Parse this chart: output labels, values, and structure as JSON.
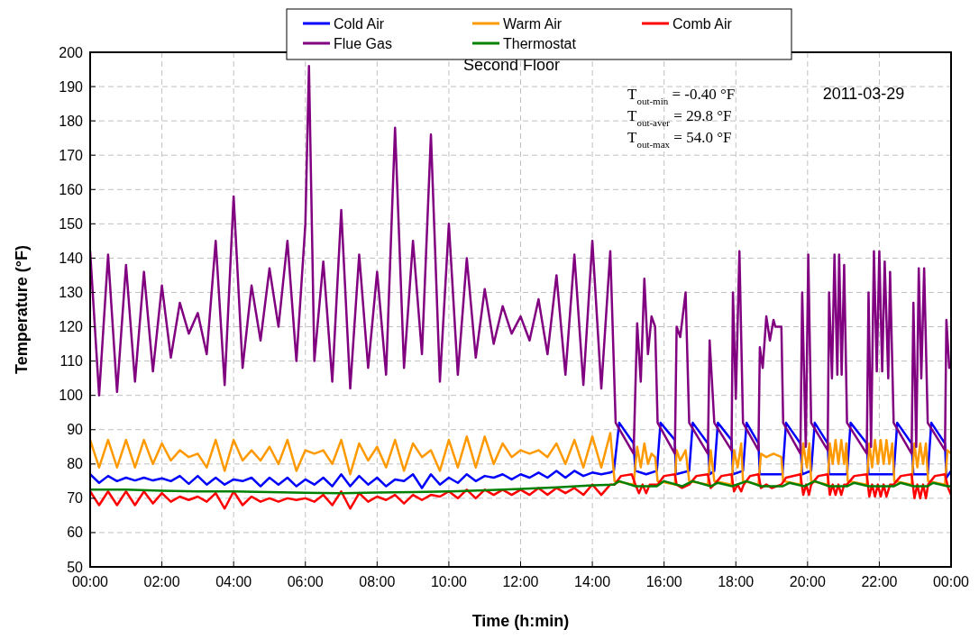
{
  "chart_data": {
    "type": "line",
    "title": "Second Floor",
    "xlabel": "Time (h:min)",
    "ylabel": "Temperature (°F)",
    "annotations": [
      "T$_{out-min}$ = -0.40 °F",
      "T$_{out-aver}$ = 29.8 °F",
      "T$_{out-max}$ = 54.0 °F",
      "2011-03-29"
    ],
    "xlim": [
      0,
      24
    ],
    "ylim": [
      50,
      200
    ],
    "xticks": [
      {
        "value": 0,
        "label": "00:00"
      },
      {
        "value": 2,
        "label": "02:00"
      },
      {
        "value": 4,
        "label": "04:00"
      },
      {
        "value": 6,
        "label": "06:00"
      },
      {
        "value": 8,
        "label": "08:00"
      },
      {
        "value": 10,
        "label": "10:00"
      },
      {
        "value": 12,
        "label": "12:00"
      },
      {
        "value": 14,
        "label": "14:00"
      },
      {
        "value": 16,
        "label": "16:00"
      },
      {
        "value": 18,
        "label": "18:00"
      },
      {
        "value": 20,
        "label": "20:00"
      },
      {
        "value": 22,
        "label": "22:00"
      },
      {
        "value": 24,
        "label": "00:00"
      }
    ],
    "yticks": [
      50,
      60,
      70,
      80,
      90,
      100,
      110,
      120,
      130,
      140,
      150,
      160,
      170,
      180,
      190,
      200
    ],
    "grid": true,
    "legend": "top",
    "series": [
      {
        "name": "Cold Air",
        "color": "#0000ff",
        "x": [
          0,
          0.25,
          0.5,
          0.75,
          1,
          1.25,
          1.5,
          1.75,
          2,
          2.25,
          2.5,
          2.75,
          3,
          3.25,
          3.5,
          3.75,
          4,
          4.25,
          4.5,
          4.75,
          5,
          5.25,
          5.5,
          5.75,
          6,
          6.25,
          6.5,
          6.75,
          7,
          7.25,
          7.5,
          7.75,
          8,
          8.25,
          8.5,
          8.75,
          9,
          9.25,
          9.5,
          9.75,
          10,
          10.25,
          10.5,
          10.75,
          11,
          11.25,
          11.5,
          11.75,
          12,
          12.25,
          12.5,
          12.75,
          13,
          13.25,
          13.5,
          13.75,
          14,
          14.25,
          14.5,
          14.6,
          14.75,
          15.15,
          15.2,
          15.5,
          15.8,
          15.9,
          16.3,
          16.33,
          16.7,
          16.8,
          17.22,
          17.27,
          17.4,
          17.5,
          17.88,
          17.92,
          18.2,
          18.3,
          18.63,
          18.67,
          19.3,
          19.4,
          19.8,
          19.85,
          20.1,
          20.2,
          20.56,
          20.6,
          21.1,
          21.2,
          21.65,
          21.7,
          22.4,
          22.5,
          22.9,
          22.95,
          23.35,
          23.45,
          23.83,
          23.87,
          24
        ],
        "values": [
          77,
          74.5,
          76.5,
          75,
          76,
          75.2,
          76,
          75.2,
          75.8,
          75,
          76.5,
          74.2,
          76.5,
          74,
          76,
          74,
          75.5,
          75,
          76,
          73.5,
          76,
          74,
          76,
          73.5,
          75.5,
          74,
          76,
          73.5,
          77,
          73.5,
          76.5,
          74,
          76,
          73.5,
          75.5,
          75,
          77,
          73,
          77,
          74,
          76,
          74.5,
          77,
          75,
          76.5,
          76,
          77,
          75.5,
          77,
          76,
          77.5,
          76,
          78,
          76,
          78,
          76.5,
          77.5,
          77,
          77.5,
          78,
          92,
          86,
          78,
          77,
          78,
          92,
          87,
          77,
          78,
          92,
          86,
          77,
          78,
          92,
          87,
          77,
          78,
          92,
          86,
          77,
          77,
          92,
          86,
          77,
          78,
          92,
          86,
          77,
          77,
          92,
          86,
          77,
          77,
          92,
          86,
          77,
          77,
          92,
          86,
          76,
          78
        ]
      },
      {
        "name": "Warm Air",
        "color": "#ff9900",
        "x": [
          0,
          0.25,
          0.5,
          0.75,
          1,
          1.25,
          1.5,
          1.75,
          2,
          2.25,
          2.5,
          2.75,
          3,
          3.25,
          3.5,
          3.75,
          4,
          4.25,
          4.5,
          4.75,
          5,
          5.25,
          5.5,
          5.75,
          6,
          6.25,
          6.5,
          6.75,
          7,
          7.25,
          7.5,
          7.75,
          8,
          8.25,
          8.5,
          8.75,
          9,
          9.25,
          9.5,
          9.75,
          10,
          10.25,
          10.5,
          10.75,
          11,
          11.25,
          11.5,
          11.75,
          12,
          12.25,
          12.5,
          12.75,
          13,
          13.25,
          13.5,
          13.75,
          14,
          14.25,
          14.5,
          14.62,
          15.15,
          15.25,
          15.35,
          15.45,
          15.55,
          15.65,
          15.75,
          15.82,
          16.3,
          16.35,
          16.45,
          16.6,
          16.7,
          17.22,
          17.3,
          17.4,
          17.88,
          17.95,
          18.05,
          18.15,
          18.2,
          18.63,
          18.7,
          18.85,
          19.05,
          19.27,
          19.32,
          19.8,
          19.88,
          19.98,
          20.05,
          20.1,
          20.56,
          20.62,
          20.7,
          20.78,
          20.86,
          20.94,
          21.02,
          21.08,
          21.12,
          21.65,
          21.72,
          21.8,
          21.88,
          21.96,
          22.04,
          22.12,
          22.2,
          22.28,
          22.36,
          22.42,
          22.9,
          22.98,
          23.06,
          23.14,
          23.22,
          23.3,
          23.36,
          23.83,
          23.9,
          24
        ],
        "values": [
          87,
          79,
          87,
          79,
          87,
          79,
          87,
          80,
          86,
          81,
          84,
          82,
          83,
          79,
          87,
          78,
          87,
          81,
          84,
          81,
          85,
          80,
          87,
          78,
          84,
          83,
          84,
          80,
          87,
          77,
          86,
          81,
          85,
          79,
          87,
          78,
          86,
          82,
          84,
          78,
          87,
          79,
          88,
          79,
          88,
          80,
          86,
          82,
          84,
          83,
          84,
          82,
          86,
          80,
          87,
          79,
          88,
          79,
          89,
          75,
          74,
          85,
          79,
          86,
          80,
          83,
          82,
          75,
          74,
          84,
          81,
          84,
          75,
          74,
          84,
          75,
          74,
          84,
          79,
          86,
          75,
          74,
          83,
          82,
          83,
          82,
          75,
          74,
          86,
          79,
          86,
          75,
          74,
          86,
          80,
          87,
          80,
          87,
          80,
          86,
          75,
          74,
          86,
          79,
          87,
          80,
          87,
          80,
          87,
          80,
          86,
          75,
          74,
          86,
          79,
          86,
          80,
          86,
          75,
          74,
          84,
          83
        ]
      },
      {
        "name": "Comb Air",
        "color": "#ff0000",
        "x": [
          0,
          0.25,
          0.5,
          0.75,
          1,
          1.25,
          1.5,
          1.75,
          2,
          2.25,
          2.5,
          2.75,
          3,
          3.25,
          3.5,
          3.75,
          4,
          4.25,
          4.5,
          4.75,
          5,
          5.25,
          5.5,
          5.75,
          6,
          6.25,
          6.5,
          6.75,
          7,
          7.25,
          7.5,
          7.75,
          8,
          8.25,
          8.5,
          8.75,
          9,
          9.25,
          9.5,
          9.75,
          10,
          10.25,
          10.5,
          10.75,
          11,
          11.25,
          11.5,
          11.75,
          12,
          12.25,
          12.5,
          12.75,
          13,
          13.25,
          13.5,
          13.75,
          14,
          14.25,
          14.5,
          14.62,
          14.8,
          15.1,
          15.2,
          15.3,
          15.4,
          15.5,
          15.6,
          15.82,
          16,
          16.3,
          16.35,
          16.5,
          16.7,
          16.9,
          17.22,
          17.3,
          17.4,
          17.6,
          17.88,
          17.95,
          18.05,
          18.15,
          18.22,
          18.4,
          18.63,
          18.7,
          18.85,
          19,
          19.27,
          19.4,
          19.8,
          19.88,
          19.96,
          20.04,
          20.1,
          20.3,
          20.56,
          20.62,
          20.7,
          20.78,
          20.86,
          20.94,
          21.02,
          21.1,
          21.3,
          21.65,
          21.72,
          21.8,
          21.88,
          21.96,
          22.04,
          22.12,
          22.2,
          22.3,
          22.4,
          22.6,
          22.9,
          22.98,
          23.06,
          23.14,
          23.22,
          23.3,
          23.36,
          23.55,
          23.83,
          23.92,
          24
        ],
        "values": [
          72,
          68,
          72,
          68,
          72,
          68,
          72,
          68.5,
          71.5,
          69,
          70.5,
          69.5,
          70.5,
          69,
          71.5,
          67,
          72,
          68,
          70.5,
          69,
          70,
          69,
          70,
          69.5,
          70,
          69,
          71,
          68,
          72,
          67,
          71.5,
          69,
          70.5,
          69.5,
          71,
          68.5,
          71,
          69.5,
          71,
          70.5,
          72,
          70,
          72.5,
          70,
          72.5,
          71,
          72.5,
          71,
          72.5,
          71,
          73,
          71,
          73,
          71.5,
          73,
          71,
          74,
          71,
          74,
          74,
          76.5,
          77,
          74,
          71.5,
          74,
          71.5,
          74,
          74,
          76.5,
          77,
          74,
          73,
          74,
          76.5,
          77,
          73,
          74,
          76.5,
          77,
          72,
          74,
          72,
          74,
          76.5,
          77,
          73,
          74,
          73,
          74,
          76,
          77,
          71,
          74,
          71,
          74,
          76.5,
          77,
          71,
          74,
          71,
          74,
          71,
          74,
          74,
          76.5,
          77,
          70.5,
          74,
          70.5,
          74,
          70.5,
          74,
          70.5,
          74,
          74,
          76.5,
          77,
          70,
          74,
          70,
          74,
          70,
          74,
          76.5,
          77,
          73,
          71
        ]
      },
      {
        "name": "Flue Gas",
        "color": "#800080",
        "x": [
          0,
          0.25,
          0.5,
          0.75,
          1,
          1.25,
          1.5,
          1.75,
          2,
          2.25,
          2.5,
          2.75,
          3,
          3.25,
          3.5,
          3.75,
          4,
          4.25,
          4.5,
          4.75,
          5,
          5.25,
          5.5,
          5.75,
          6,
          6.1,
          6.25,
          6.5,
          6.75,
          7,
          7.25,
          7.5,
          7.75,
          8,
          8.25,
          8.5,
          8.75,
          9,
          9.25,
          9.5,
          9.75,
          10,
          10.25,
          10.5,
          10.75,
          11,
          11.25,
          11.5,
          11.75,
          12,
          12.25,
          12.5,
          12.75,
          13,
          13.25,
          13.5,
          13.75,
          14,
          14.25,
          14.5,
          14.65,
          15.15,
          15.25,
          15.35,
          15.45,
          15.55,
          15.65,
          15.75,
          15.82,
          16.3,
          16.35,
          16.45,
          16.6,
          16.7,
          17.22,
          17.27,
          17.4,
          17.88,
          17.92,
          18,
          18.1,
          18.2,
          18.63,
          18.67,
          18.75,
          18.85,
          18.95,
          19.05,
          19.1,
          19.27,
          19.32,
          19.8,
          19.85,
          19.95,
          20.02,
          20.1,
          20.56,
          20.6,
          20.68,
          20.75,
          20.83,
          20.88,
          20.95,
          21.02,
          21.1,
          21.65,
          21.7,
          21.77,
          21.85,
          21.93,
          22,
          22.08,
          22.15,
          22.25,
          22.3,
          22.4,
          22.9,
          22.95,
          23.03,
          23.1,
          23.17,
          23.25,
          23.35,
          23.83,
          23.87,
          23.95
        ],
        "values": [
          142,
          100,
          141,
          101,
          138,
          104,
          136,
          107,
          132,
          111,
          127,
          118,
          124,
          112,
          145,
          103,
          158,
          108,
          132,
          116,
          137,
          120,
          145,
          110,
          150,
          196,
          110,
          139,
          104,
          154,
          102,
          141,
          108,
          136,
          106,
          178,
          108,
          145,
          112,
          176,
          104,
          150,
          106,
          140,
          111,
          131,
          115,
          126,
          118,
          123,
          116,
          128,
          112,
          135,
          106,
          141,
          103,
          145,
          102,
          142,
          92,
          83,
          121,
          104,
          134,
          112,
          123,
          120,
          92,
          83,
          120,
          117,
          130,
          92,
          83,
          116,
          92,
          84,
          130,
          99,
          142,
          92,
          84,
          114,
          108,
          123,
          116,
          122,
          120,
          120,
          92,
          83,
          130,
          85,
          141,
          92,
          84,
          130,
          105,
          141,
          106,
          141,
          106,
          138,
          92,
          83,
          130,
          85,
          142,
          107,
          142,
          107,
          139,
          105,
          136,
          92,
          83,
          127,
          85,
          137,
          105,
          137,
          92,
          84,
          122,
          108
        ]
      },
      {
        "name": "Thermostat",
        "color": "#008000",
        "x": [
          0,
          1,
          2,
          3,
          4,
          5,
          6,
          7,
          8,
          9,
          10,
          11,
          12,
          13,
          14,
          14.6,
          14.75,
          15.2,
          15.8,
          16,
          16.5,
          16.8,
          17.3,
          17.5,
          17.9,
          18.3,
          18.7,
          19.3,
          19.5,
          19.9,
          20.2,
          20.6,
          21.1,
          21.3,
          21.7,
          22.4,
          22.6,
          22.95,
          23.35,
          23.5,
          23.9,
          24
        ],
        "values": [
          72.5,
          72.5,
          72.2,
          72,
          72,
          71.8,
          71.6,
          71.5,
          71.7,
          71.8,
          72,
          72.3,
          72.7,
          73.2,
          73.8,
          74,
          75,
          73.5,
          73.5,
          75,
          73.5,
          75,
          73.5,
          74.5,
          73.5,
          75,
          73.5,
          73.5,
          74.5,
          73.5,
          75,
          73.5,
          73.5,
          74.5,
          73.5,
          73.5,
          74.5,
          73.5,
          73.5,
          74.5,
          73.5,
          73.5
        ]
      }
    ]
  }
}
